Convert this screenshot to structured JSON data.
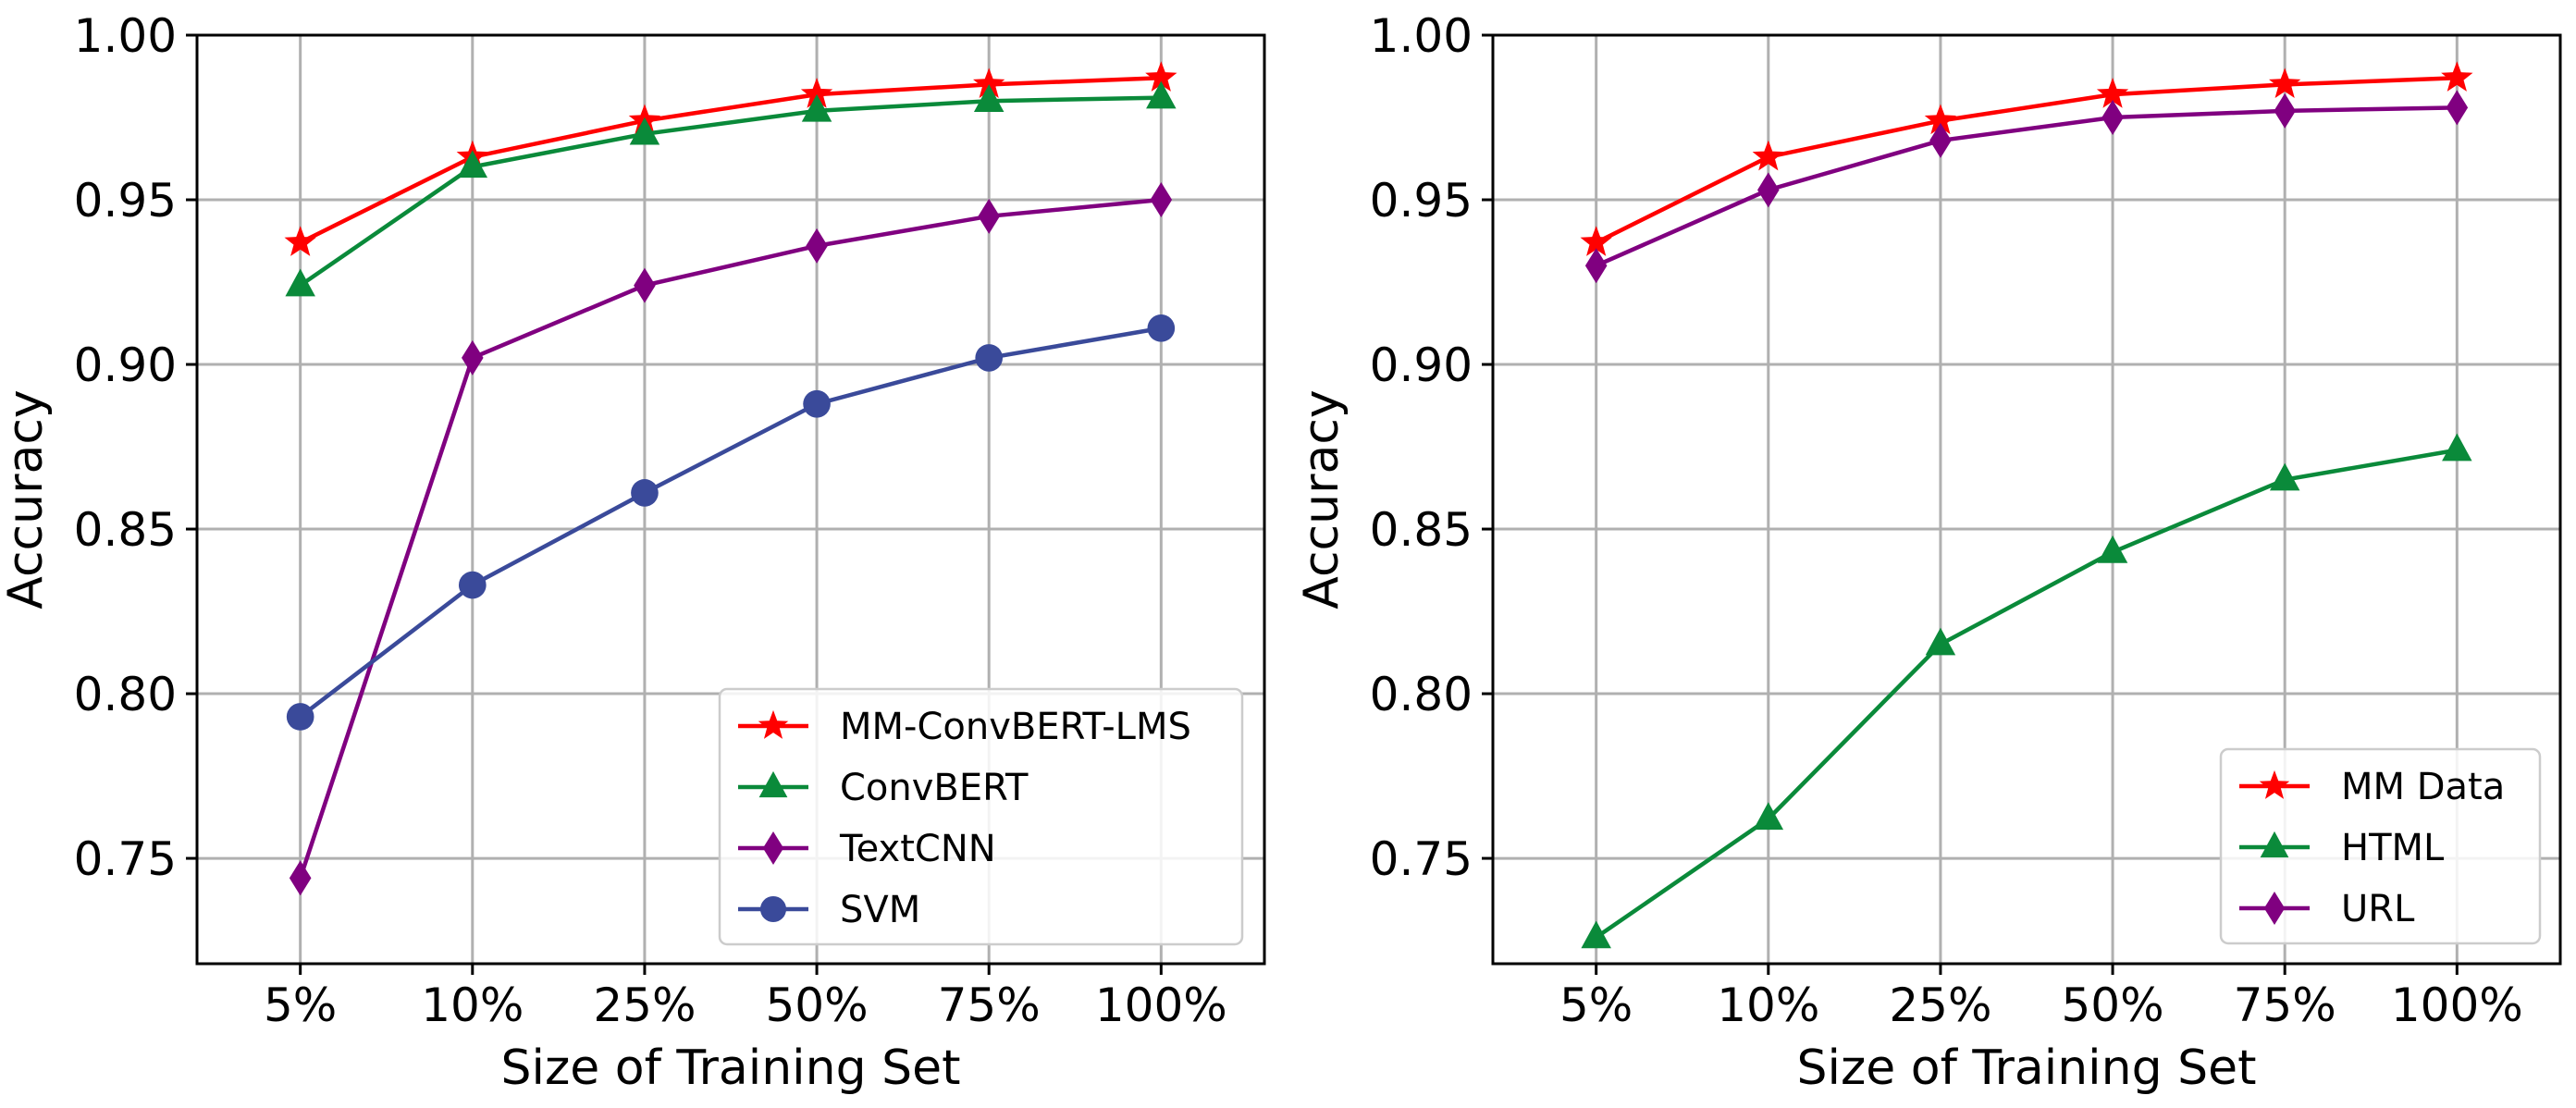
{
  "chart_data": [
    {
      "type": "line",
      "xlabel": "Size of Training Set",
      "ylabel": "Accuracy",
      "categories": [
        "5%",
        "10%",
        "25%",
        "50%",
        "75%",
        "100%"
      ],
      "ylim": [
        0.718,
        1.0
      ],
      "yticks": [
        0.75,
        0.8,
        0.85,
        0.9,
        0.95,
        1.0
      ],
      "ytick_labels": [
        "0.75",
        "0.80",
        "0.85",
        "0.90",
        "0.95",
        "1.00"
      ],
      "grid": true,
      "legend_position": "bottom-right",
      "series": [
        {
          "name": "MM-ConvBERT-LMS",
          "color": "#ff0000",
          "marker": "star",
          "values": [
            0.937,
            0.963,
            0.974,
            0.982,
            0.985,
            0.987
          ]
        },
        {
          "name": "ConvBERT",
          "color": "#0a8a3a",
          "marker": "triangle",
          "values": [
            0.924,
            0.96,
            0.97,
            0.977,
            0.98,
            0.981
          ]
        },
        {
          "name": "TextCNN",
          "color": "#800080",
          "marker": "diamond",
          "values": [
            0.744,
            0.902,
            0.924,
            0.936,
            0.945,
            0.95
          ]
        },
        {
          "name": "SVM",
          "color": "#3a4a9a",
          "marker": "circle",
          "values": [
            0.793,
            0.833,
            0.861,
            0.888,
            0.902,
            0.911
          ]
        }
      ]
    },
    {
      "type": "line",
      "xlabel": "Size of Training Set",
      "ylabel": "Accuracy",
      "categories": [
        "5%",
        "10%",
        "25%",
        "50%",
        "75%",
        "100%"
      ],
      "ylim": [
        0.718,
        1.0
      ],
      "yticks": [
        0.75,
        0.8,
        0.85,
        0.9,
        0.95,
        1.0
      ],
      "ytick_labels": [
        "0.75",
        "0.80",
        "0.85",
        "0.90",
        "0.95",
        "1.00"
      ],
      "grid": true,
      "legend_position": "bottom-right",
      "series": [
        {
          "name": "MM Data",
          "color": "#ff0000",
          "marker": "star",
          "values": [
            0.937,
            0.963,
            0.974,
            0.982,
            0.985,
            0.987
          ]
        },
        {
          "name": "HTML",
          "color": "#0a8a3a",
          "marker": "triangle",
          "values": [
            0.726,
            0.762,
            0.815,
            0.843,
            0.865,
            0.874
          ]
        },
        {
          "name": "URL",
          "color": "#800080",
          "marker": "diamond",
          "values": [
            0.93,
            0.953,
            0.968,
            0.975,
            0.977,
            0.978
          ]
        }
      ]
    }
  ]
}
